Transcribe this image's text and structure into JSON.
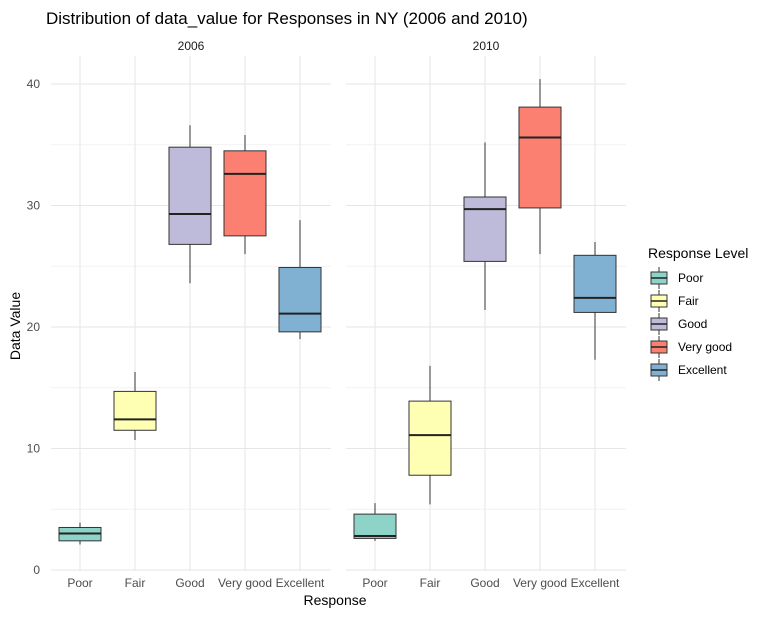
{
  "chart_data": {
    "type": "boxplot",
    "title": "Distribution of data_value for Responses in NY (2006 and 2010)",
    "xlabel": "Response",
    "ylabel": "Data Value",
    "ylim": [
      0,
      42
    ],
    "yticks": [
      0,
      10,
      20,
      30,
      40
    ],
    "grid": true,
    "categories": [
      "Poor",
      "Fair",
      "Good",
      "Very good",
      "Excellent"
    ],
    "legend": {
      "title": "Response Level",
      "position": "right",
      "entries": [
        "Poor",
        "Fair",
        "Good",
        "Very good",
        "Excellent"
      ],
      "colors": [
        "#8DD3C7",
        "#FFFFB3",
        "#BEBADA",
        "#FB8072",
        "#80B1D3"
      ]
    },
    "panels": [
      {
        "name": "2006",
        "boxes": [
          {
            "category": "Poor",
            "min": 2.1,
            "q1": 2.4,
            "median": 3.0,
            "q3": 3.5,
            "max": 3.9
          },
          {
            "category": "Fair",
            "min": 10.7,
            "q1": 11.5,
            "median": 12.4,
            "q3": 14.7,
            "max": 16.3
          },
          {
            "category": "Good",
            "min": 23.6,
            "q1": 26.8,
            "median": 29.3,
            "q3": 34.8,
            "max": 36.6
          },
          {
            "category": "Very good",
            "min": 26.0,
            "q1": 27.5,
            "median": 32.6,
            "q3": 34.5,
            "max": 35.8
          },
          {
            "category": "Excellent",
            "min": 19.0,
            "q1": 19.6,
            "median": 21.1,
            "q3": 24.9,
            "max": 28.8
          }
        ]
      },
      {
        "name": "2010",
        "boxes": [
          {
            "category": "Poor",
            "min": 2.4,
            "q1": 2.6,
            "median": 2.8,
            "q3": 4.6,
            "max": 5.5
          },
          {
            "category": "Fair",
            "min": 5.4,
            "q1": 7.8,
            "median": 11.1,
            "q3": 13.9,
            "max": 16.8
          },
          {
            "category": "Good",
            "min": 21.4,
            "q1": 25.4,
            "median": 29.7,
            "q3": 30.7,
            "max": 35.2
          },
          {
            "category": "Very good",
            "min": 26.0,
            "q1": 29.8,
            "median": 35.6,
            "q3": 38.1,
            "max": 40.4
          },
          {
            "category": "Excellent",
            "min": 17.3,
            "q1": 21.2,
            "median": 22.4,
            "q3": 25.9,
            "max": 27.0
          }
        ]
      }
    ]
  }
}
